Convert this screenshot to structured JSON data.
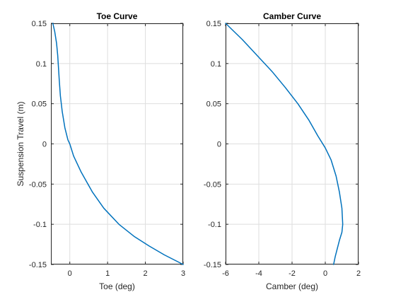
{
  "chart_data": [
    {
      "type": "line",
      "title": "Toe Curve",
      "xlabel": "Toe (deg)",
      "ylabel": "Suspension Travel (m)",
      "xlim": [
        -0.5,
        3
      ],
      "ylim": [
        -0.15,
        0.15
      ],
      "xticks": [
        0,
        1,
        2,
        3
      ],
      "yticks": [
        -0.15,
        -0.1,
        -0.05,
        0,
        0.05,
        0.1,
        0.15
      ],
      "xtick_labels": [
        "0",
        "1",
        "2",
        "3"
      ],
      "ytick_labels": [
        "-0.15",
        "-0.1",
        "-0.05",
        "0",
        "0.05",
        "0.1",
        "0.15"
      ],
      "grid": true,
      "color": "#0072BD",
      "series": [
        {
          "x": [
            -0.45,
            -0.4,
            -0.35,
            -0.32,
            -0.3,
            -0.28,
            -0.25,
            -0.2,
            -0.13,
            -0.05,
            0.0,
            0.1,
            0.3,
            0.6,
            0.9,
            1.3,
            1.7,
            2.1,
            2.5,
            3.0
          ],
          "y": [
            0.15,
            0.14,
            0.125,
            0.11,
            0.095,
            0.08,
            0.06,
            0.04,
            0.02,
            0.005,
            0.0,
            -0.015,
            -0.035,
            -0.06,
            -0.08,
            -0.1,
            -0.115,
            -0.127,
            -0.138,
            -0.15
          ]
        }
      ]
    },
    {
      "type": "line",
      "title": "Camber Curve",
      "xlabel": "Camber (deg)",
      "ylabel": "",
      "xlim": [
        -6,
        2
      ],
      "ylim": [
        -0.15,
        0.15
      ],
      "xticks": [
        -6,
        -4,
        -2,
        0,
        2
      ],
      "yticks": [
        -0.15,
        -0.1,
        -0.05,
        0,
        0.05,
        0.1,
        0.15
      ],
      "xtick_labels": [
        "-6",
        "-4",
        "-2",
        "0",
        "2"
      ],
      "ytick_labels": [
        "-0.15",
        "-0.1",
        "-0.05",
        "0",
        "0.05",
        "0.1",
        "0.15"
      ],
      "grid": true,
      "color": "#0072BD",
      "series": [
        {
          "x": [
            -6.0,
            -5.0,
            -4.1,
            -3.2,
            -2.4,
            -1.65,
            -1.0,
            -0.45,
            0.0,
            0.35,
            0.65,
            0.85,
            1.0,
            1.05,
            1.0,
            0.85,
            0.6,
            0.5
          ],
          "y": [
            0.15,
            0.13,
            0.11,
            0.09,
            0.07,
            0.05,
            0.03,
            0.01,
            -0.005,
            -0.02,
            -0.04,
            -0.06,
            -0.08,
            -0.1,
            -0.11,
            -0.12,
            -0.14,
            -0.15
          ]
        }
      ]
    }
  ]
}
